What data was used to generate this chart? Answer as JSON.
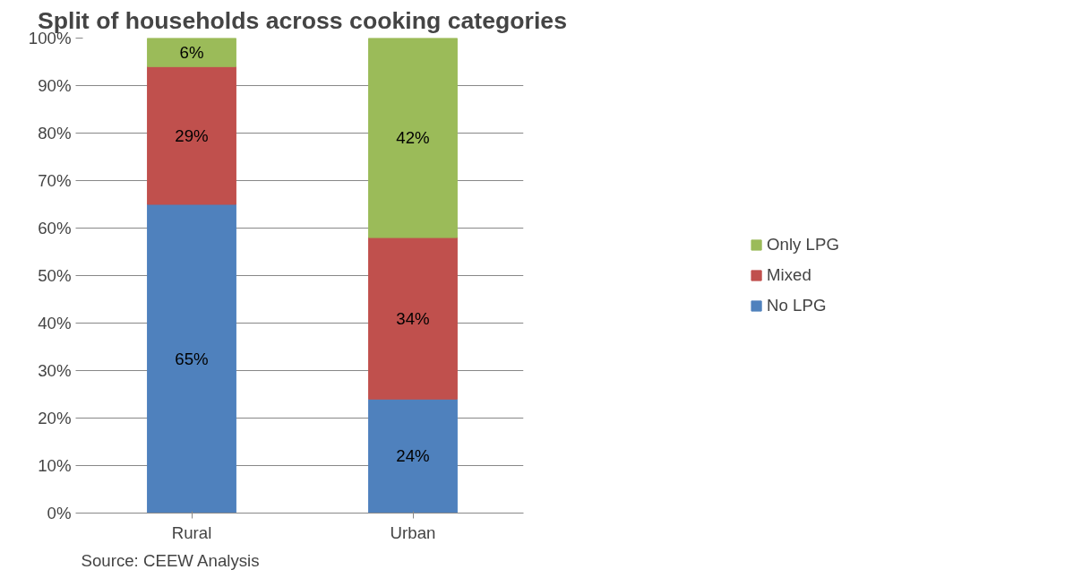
{
  "chart_data": {
    "type": "bar",
    "stacked": true,
    "title": "Split of households across cooking categories",
    "categories": [
      "Rural",
      "Urban"
    ],
    "series": [
      {
        "name": "No LPG",
        "color": "#4f81bd",
        "values": [
          65,
          24
        ],
        "value_labels": [
          "65%",
          "24%"
        ]
      },
      {
        "name": "Mixed",
        "color": "#c0504d",
        "values": [
          29,
          34
        ],
        "value_labels": [
          "29%",
          "34%"
        ]
      },
      {
        "name": "Only LPG",
        "color": "#9bbb59",
        "values": [
          6,
          42
        ],
        "value_labels": [
          "6%",
          "42%"
        ]
      }
    ],
    "ylim": [
      0,
      100
    ],
    "yticks": [
      {
        "value": 0,
        "label": "0%"
      },
      {
        "value": 10,
        "label": "10%"
      },
      {
        "value": 20,
        "label": "20%"
      },
      {
        "value": 30,
        "label": "30%"
      },
      {
        "value": 40,
        "label": "40%"
      },
      {
        "value": 50,
        "label": "50%"
      },
      {
        "value": 60,
        "label": "60%"
      },
      {
        "value": 70,
        "label": "70%"
      },
      {
        "value": 80,
        "label": "80%"
      },
      {
        "value": 90,
        "label": "90%"
      },
      {
        "value": 100,
        "label": "100%"
      }
    ],
    "grid": "y",
    "legend": "right",
    "annotations": [
      "Source: CEEW Analysis"
    ]
  }
}
